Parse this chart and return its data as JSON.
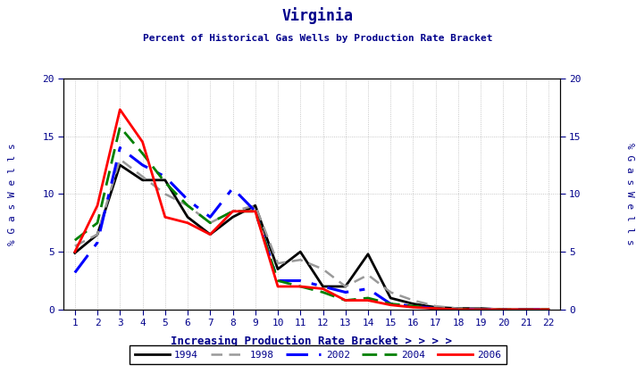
{
  "title": "Virginia",
  "subtitle": "Percent of Historical Gas Wells by Production Rate Bracket",
  "xlabel": "Increasing Production Rate Bracket > > > >",
  "x": [
    1,
    2,
    3,
    4,
    5,
    6,
    7,
    8,
    9,
    10,
    11,
    12,
    13,
    14,
    15,
    16,
    17,
    18,
    19,
    20,
    21,
    22
  ],
  "series": {
    "1994": {
      "color": "#000000",
      "linewidth": 2.0,
      "dashes": null,
      "values": [
        4.9,
        6.5,
        12.5,
        11.2,
        11.2,
        8.0,
        6.5,
        8.0,
        9.0,
        3.5,
        5.0,
        2.0,
        2.0,
        4.8,
        1.0,
        0.5,
        0.2,
        0.1,
        0.1,
        0.0,
        0.0,
        0.0
      ]
    },
    "1998": {
      "color": "#999999",
      "linewidth": 1.8,
      "dashes": [
        5,
        3
      ],
      "values": [
        5.5,
        6.5,
        13.0,
        11.5,
        10.0,
        9.0,
        7.5,
        8.5,
        9.0,
        4.0,
        4.3,
        3.5,
        2.0,
        3.0,
        1.5,
        0.8,
        0.3,
        0.1,
        0.1,
        0.0,
        0.0,
        0.0
      ]
    },
    "2002": {
      "color": "#0000FF",
      "linewidth": 2.2,
      "dashes": [
        8,
        4,
        2,
        4
      ],
      "values": [
        3.2,
        5.8,
        14.0,
        12.5,
        11.5,
        9.5,
        8.0,
        10.5,
        8.5,
        2.5,
        2.5,
        2.0,
        1.5,
        1.8,
        0.5,
        0.3,
        0.1,
        0.0,
        0.0,
        0.0,
        0.0,
        0.0
      ]
    },
    "2004": {
      "color": "#008000",
      "linewidth": 2.0,
      "dashes": [
        6,
        3
      ],
      "values": [
        6.0,
        7.5,
        15.8,
        13.5,
        11.0,
        9.0,
        7.5,
        8.5,
        8.5,
        2.5,
        2.0,
        1.5,
        0.8,
        1.0,
        0.5,
        0.3,
        0.1,
        0.0,
        0.0,
        0.0,
        0.0,
        0.0
      ]
    },
    "2006": {
      "color": "#FF0000",
      "linewidth": 2.0,
      "dashes": null,
      "values": [
        5.0,
        9.0,
        17.3,
        14.5,
        8.0,
        7.5,
        6.5,
        8.5,
        8.5,
        2.0,
        2.0,
        1.8,
        0.8,
        0.8,
        0.4,
        0.2,
        0.1,
        0.0,
        0.0,
        0.0,
        0.0,
        0.0
      ]
    }
  },
  "ylim": [
    0,
    20
  ],
  "yticks": [
    0,
    5,
    10,
    15,
    20
  ],
  "xticks": [
    1,
    2,
    3,
    4,
    5,
    6,
    7,
    8,
    9,
    10,
    11,
    12,
    13,
    14,
    15,
    16,
    17,
    18,
    19,
    20,
    21,
    22
  ],
  "legend_order": [
    "1994",
    "1998",
    "2002",
    "2004",
    "2006"
  ],
  "title_color": "#00008B",
  "subtitle_color": "#00008B",
  "xlabel_color": "#00008B",
  "ylabel_color": "#00008B",
  "tick_color": "#00008B",
  "background_color": "#FFFFFF",
  "grid_color": "#999999",
  "ylabel_text": "% G a s W e l l s"
}
